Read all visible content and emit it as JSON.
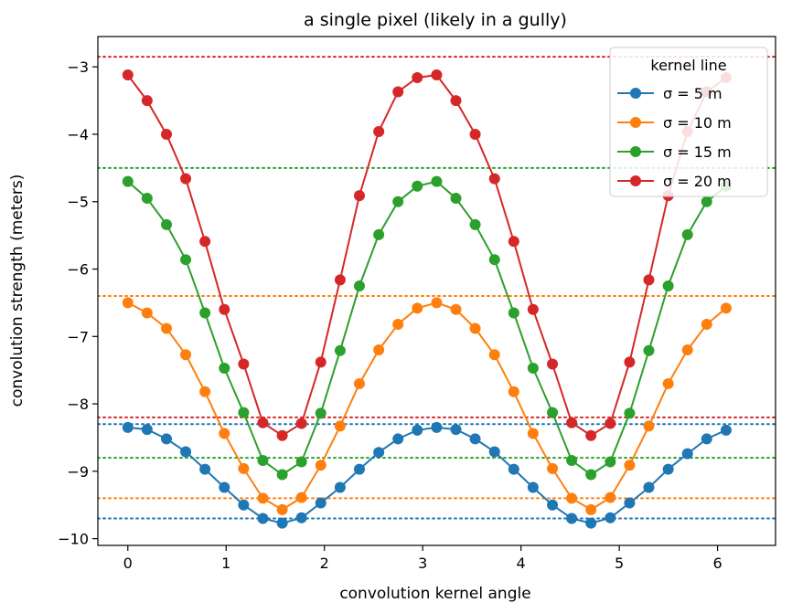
{
  "chart_data": {
    "type": "line",
    "title": "a single pixel (likely in a gully)",
    "xlabel": "convolution kernel angle",
    "ylabel": "convolution strength (meters)",
    "xlim": [
      -0.305,
      6.59
    ],
    "ylim": [
      -10.1,
      -2.55
    ],
    "xticks": [
      0,
      1,
      2,
      3,
      4,
      5,
      6
    ],
    "yticks": [
      -10,
      -9,
      -8,
      -7,
      -6,
      -5,
      -4,
      -3
    ],
    "x_tick_labels": [
      "0",
      "1",
      "2",
      "3",
      "4",
      "5",
      "6"
    ],
    "y_tick_labels": [
      "−10",
      "−9",
      "−8",
      "−7",
      "−6",
      "−5",
      "−4",
      "−3"
    ],
    "grid": false,
    "legend": {
      "title": "kernel line",
      "position": "top-right"
    },
    "x": [
      0.0,
      0.196,
      0.393,
      0.589,
      0.785,
      0.982,
      1.178,
      1.374,
      1.571,
      1.767,
      1.963,
      2.16,
      2.356,
      2.553,
      2.749,
      2.945,
      3.142,
      3.338,
      3.534,
      3.731,
      3.927,
      4.123,
      4.32,
      4.516,
      4.712,
      4.909,
      5.105,
      5.301,
      5.498,
      5.694,
      5.89,
      6.087
    ],
    "series": [
      {
        "name": "σ = 5 m",
        "color": "#1f77b4",
        "values": [
          -8.35,
          -8.38,
          -8.52,
          -8.71,
          -8.97,
          -9.24,
          -9.5,
          -9.7,
          -9.77,
          -9.69,
          -9.47,
          -9.24,
          -8.97,
          -8.72,
          -8.52,
          -8.39,
          -8.35,
          -8.38,
          -8.52,
          -8.71,
          -8.97,
          -9.24,
          -9.5,
          -9.7,
          -9.77,
          -9.69,
          -9.47,
          -9.24,
          -8.97,
          -8.74,
          -8.52,
          -8.39
        ],
        "ref_lines": [
          -8.3,
          -9.7
        ]
      },
      {
        "name": "σ = 10 m",
        "color": "#ff7f0e",
        "values": [
          -6.5,
          -6.65,
          -6.88,
          -7.27,
          -7.82,
          -8.44,
          -8.96,
          -9.4,
          -9.57,
          -9.39,
          -8.91,
          -8.33,
          -7.7,
          -7.2,
          -6.82,
          -6.58,
          -6.5,
          -6.6,
          -6.88,
          -7.27,
          -7.82,
          -8.44,
          -8.96,
          -9.4,
          -9.57,
          -9.39,
          -8.91,
          -8.33,
          -7.7,
          -7.2,
          -6.82,
          -6.58
        ],
        "ref_lines": [
          -6.4,
          -9.4
        ]
      },
      {
        "name": "σ = 15 m",
        "color": "#2ca02c",
        "values": [
          -4.7,
          -4.95,
          -5.34,
          -5.86,
          -6.65,
          -7.47,
          -8.13,
          -8.84,
          -9.05,
          -8.86,
          -8.14,
          -7.21,
          -6.25,
          -5.49,
          -5.0,
          -4.77,
          -4.7,
          -4.95,
          -5.34,
          -5.86,
          -6.65,
          -7.47,
          -8.13,
          -8.84,
          -9.05,
          -8.86,
          -8.14,
          -7.21,
          -6.25,
          -5.49,
          -5.0,
          -4.77
        ],
        "ref_lines": [
          -4.5,
          -8.8
        ]
      },
      {
        "name": "σ = 20 m",
        "color": "#d62728",
        "values": [
          -3.12,
          -3.5,
          -4.0,
          -4.66,
          -5.59,
          -6.6,
          -7.41,
          -8.28,
          -8.47,
          -8.29,
          -7.38,
          -6.16,
          -4.91,
          -3.96,
          -3.37,
          -3.16,
          -3.12,
          -3.5,
          -4.0,
          -4.66,
          -5.59,
          -6.6,
          -7.41,
          -8.28,
          -8.47,
          -8.29,
          -7.38,
          -6.16,
          -4.91,
          -3.96,
          -3.37,
          -3.16
        ],
        "ref_lines": [
          -2.85,
          -8.2
        ]
      }
    ]
  }
}
